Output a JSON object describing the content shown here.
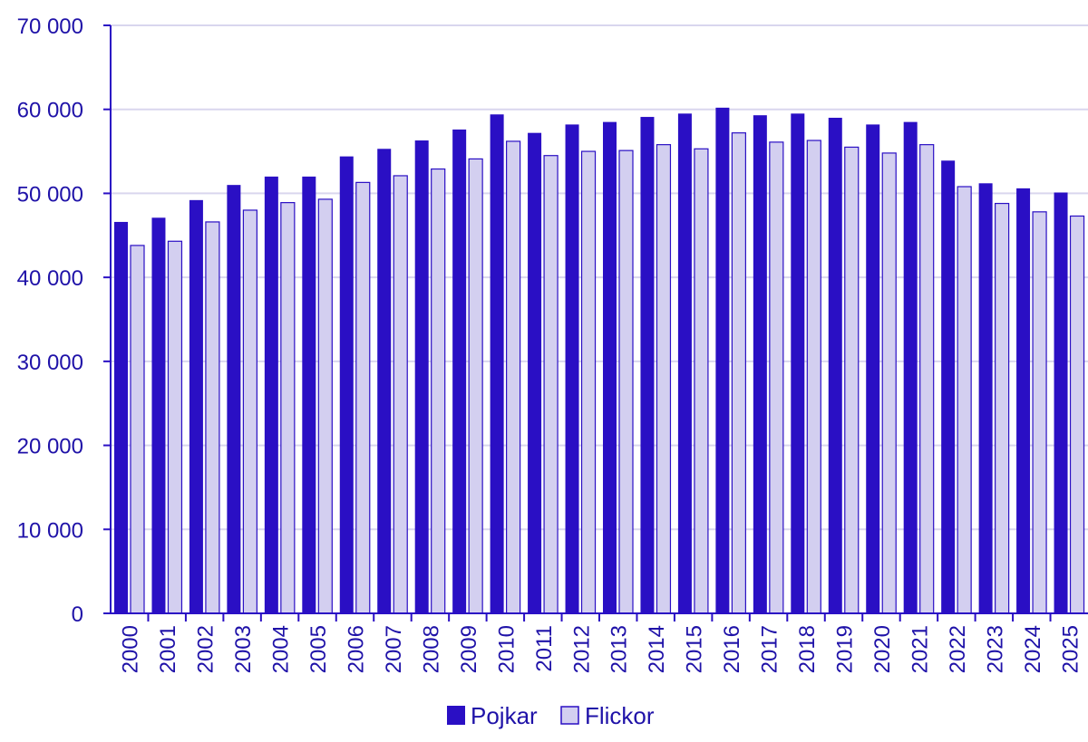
{
  "colors": {
    "pojkar_fill": "#2a0fc4",
    "flickor_fill": "#d3cff0",
    "flickor_stroke": "#2a0fc4",
    "grid": "#d9d6ee",
    "axis": "#2a0fc4",
    "text": "#1f12a8"
  },
  "chart_data": {
    "type": "bar",
    "title": "",
    "xlabel": "",
    "ylabel": "",
    "ylim": [
      0,
      70000
    ],
    "yticks": [
      0,
      10000,
      20000,
      30000,
      40000,
      50000,
      60000,
      70000
    ],
    "ytick_labels": [
      "0",
      "10 000",
      "20 000",
      "30 000",
      "40 000",
      "50 000",
      "60 000",
      "70 000"
    ],
    "grid": true,
    "legend_position": "bottom-center",
    "categories": [
      "2000",
      "2001",
      "2002",
      "2003",
      "2004",
      "2005",
      "2006",
      "2007",
      "2008",
      "2009",
      "2010",
      "2011",
      "2012",
      "2013",
      "2014",
      "2015",
      "2016",
      "2017",
      "2018",
      "2019",
      "2020",
      "2021",
      "2022",
      "2023",
      "2024",
      "2025"
    ],
    "series": [
      {
        "name": "Pojkar",
        "values": [
          46600,
          47100,
          49200,
          51000,
          52000,
          52000,
          54400,
          55300,
          56300,
          57600,
          59400,
          57200,
          58200,
          58500,
          59100,
          59500,
          60200,
          59300,
          59500,
          59000,
          58200,
          58500,
          53900,
          51200,
          50600,
          50100
        ]
      },
      {
        "name": "Flickor",
        "values": [
          43800,
          44300,
          46600,
          48000,
          48900,
          49300,
          51300,
          52100,
          52900,
          54100,
          56200,
          54500,
          55000,
          55100,
          55800,
          55300,
          57200,
          56100,
          56300,
          55500,
          54800,
          55800,
          50800,
          48800,
          47800,
          47300
        ]
      }
    ]
  }
}
